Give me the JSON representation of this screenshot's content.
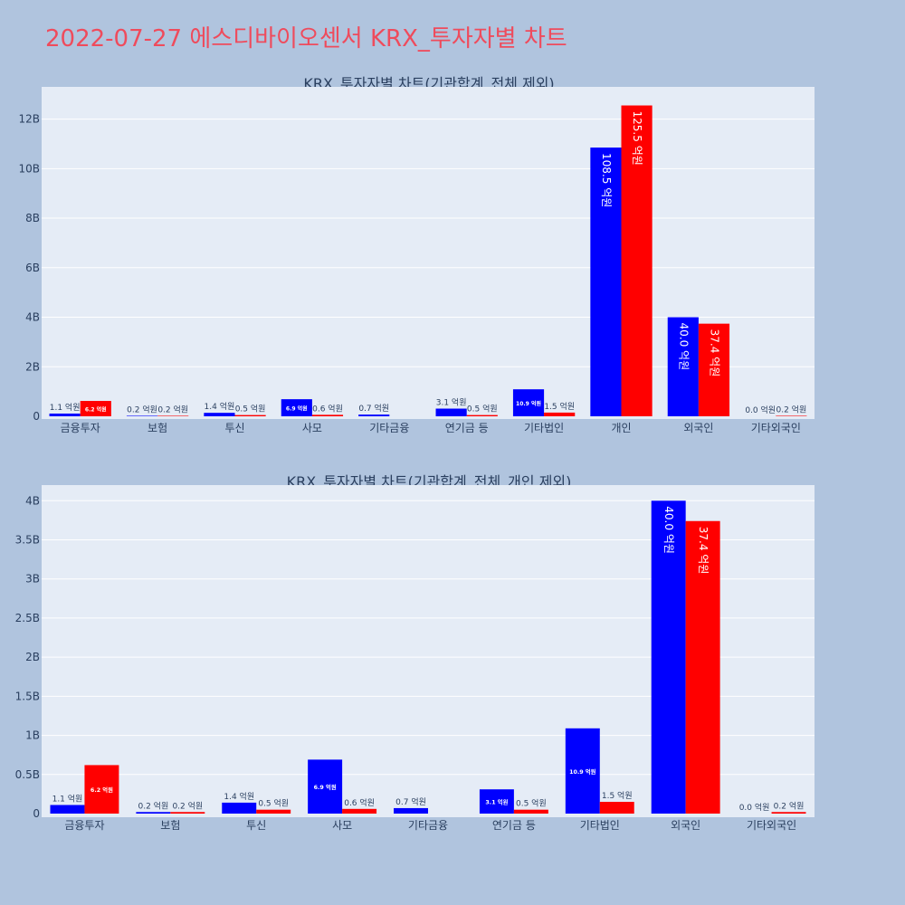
{
  "page_title": "2022-07-27 에스디바이오센서 KRX_투자자별 차트",
  "colors": {
    "buy": "#0000ff",
    "sell": "#ff0000",
    "plot_bg": "#e5ecf6",
    "page_bg": "#b0c4de",
    "title": "#ef4b5c"
  },
  "chart_data": [
    {
      "type": "bar",
      "title": "KRX_투자자별 차트(기관합계_전체 제외)",
      "categories": [
        "금융투자",
        "보험",
        "투신",
        "사모",
        "기타금융",
        "연기금 등",
        "기타법인",
        "개인",
        "외국인",
        "기타외국인"
      ],
      "series": [
        {
          "color": "#0000ff",
          "values": [
            0.11,
            0.02,
            0.14,
            0.69,
            0.07,
            0.31,
            1.09,
            10.85,
            4.0,
            0.0
          ],
          "labels": [
            "1.1 억원",
            "0.2 억원",
            "1.4 억원",
            "6.9 억원",
            "0.7 억원",
            "3.1 억원",
            "10.9 억원",
            "108.5 억원",
            "40.0 억원",
            "0.0 억원"
          ]
        },
        {
          "color": "#ff0000",
          "values": [
            0.62,
            0.02,
            0.05,
            0.06,
            0.0,
            0.05,
            0.15,
            12.55,
            3.74,
            0.02
          ],
          "labels": [
            "6.2 억원",
            "0.2 억원",
            "0.5 억원",
            "0.6 억원",
            "",
            "0.5 억원",
            "1.5 억원",
            "125.5 억원",
            "37.4 억원",
            "0.2 억원"
          ]
        }
      ],
      "ylim": [
        0,
        13.3
      ],
      "yticks": [
        0,
        2,
        4,
        6,
        8,
        10,
        12
      ],
      "ytick_labels": [
        "0",
        "2B",
        "4B",
        "6B",
        "8B",
        "10B",
        "12B"
      ],
      "grid": true
    },
    {
      "type": "bar",
      "title": "KRX_투자자별 차트(기관합계_전체_개인 제외)",
      "categories": [
        "금융투자",
        "보험",
        "투신",
        "사모",
        "기타금융",
        "연기금 등",
        "기타법인",
        "외국인",
        "기타외국인"
      ],
      "series": [
        {
          "color": "#0000ff",
          "values": [
            0.11,
            0.02,
            0.14,
            0.69,
            0.07,
            0.31,
            1.09,
            4.0,
            0.0
          ],
          "labels": [
            "1.1 억원",
            "0.2 억원",
            "1.4 억원",
            "6.9 억원",
            "0.7 억원",
            "3.1 억원",
            "10.9 억원",
            "40.0 억원",
            "0.0 억원"
          ]
        },
        {
          "color": "#ff0000",
          "values": [
            0.62,
            0.02,
            0.05,
            0.06,
            0.0,
            0.05,
            0.15,
            3.74,
            0.02
          ],
          "labels": [
            "6.2 억원",
            "0.2 억원",
            "0.5 억원",
            "0.6 억원",
            "",
            "0.5 억원",
            "1.5 억원",
            "37.4 억원",
            "0.2 억원"
          ]
        }
      ],
      "ylim": [
        0,
        4.2
      ],
      "yticks": [
        0,
        0.5,
        1,
        1.5,
        2,
        2.5,
        3,
        3.5,
        4
      ],
      "ytick_labels": [
        "0",
        "0.5B",
        "1B",
        "1.5B",
        "2B",
        "2.5B",
        "3B",
        "3.5B",
        "4B"
      ],
      "grid": true
    }
  ]
}
